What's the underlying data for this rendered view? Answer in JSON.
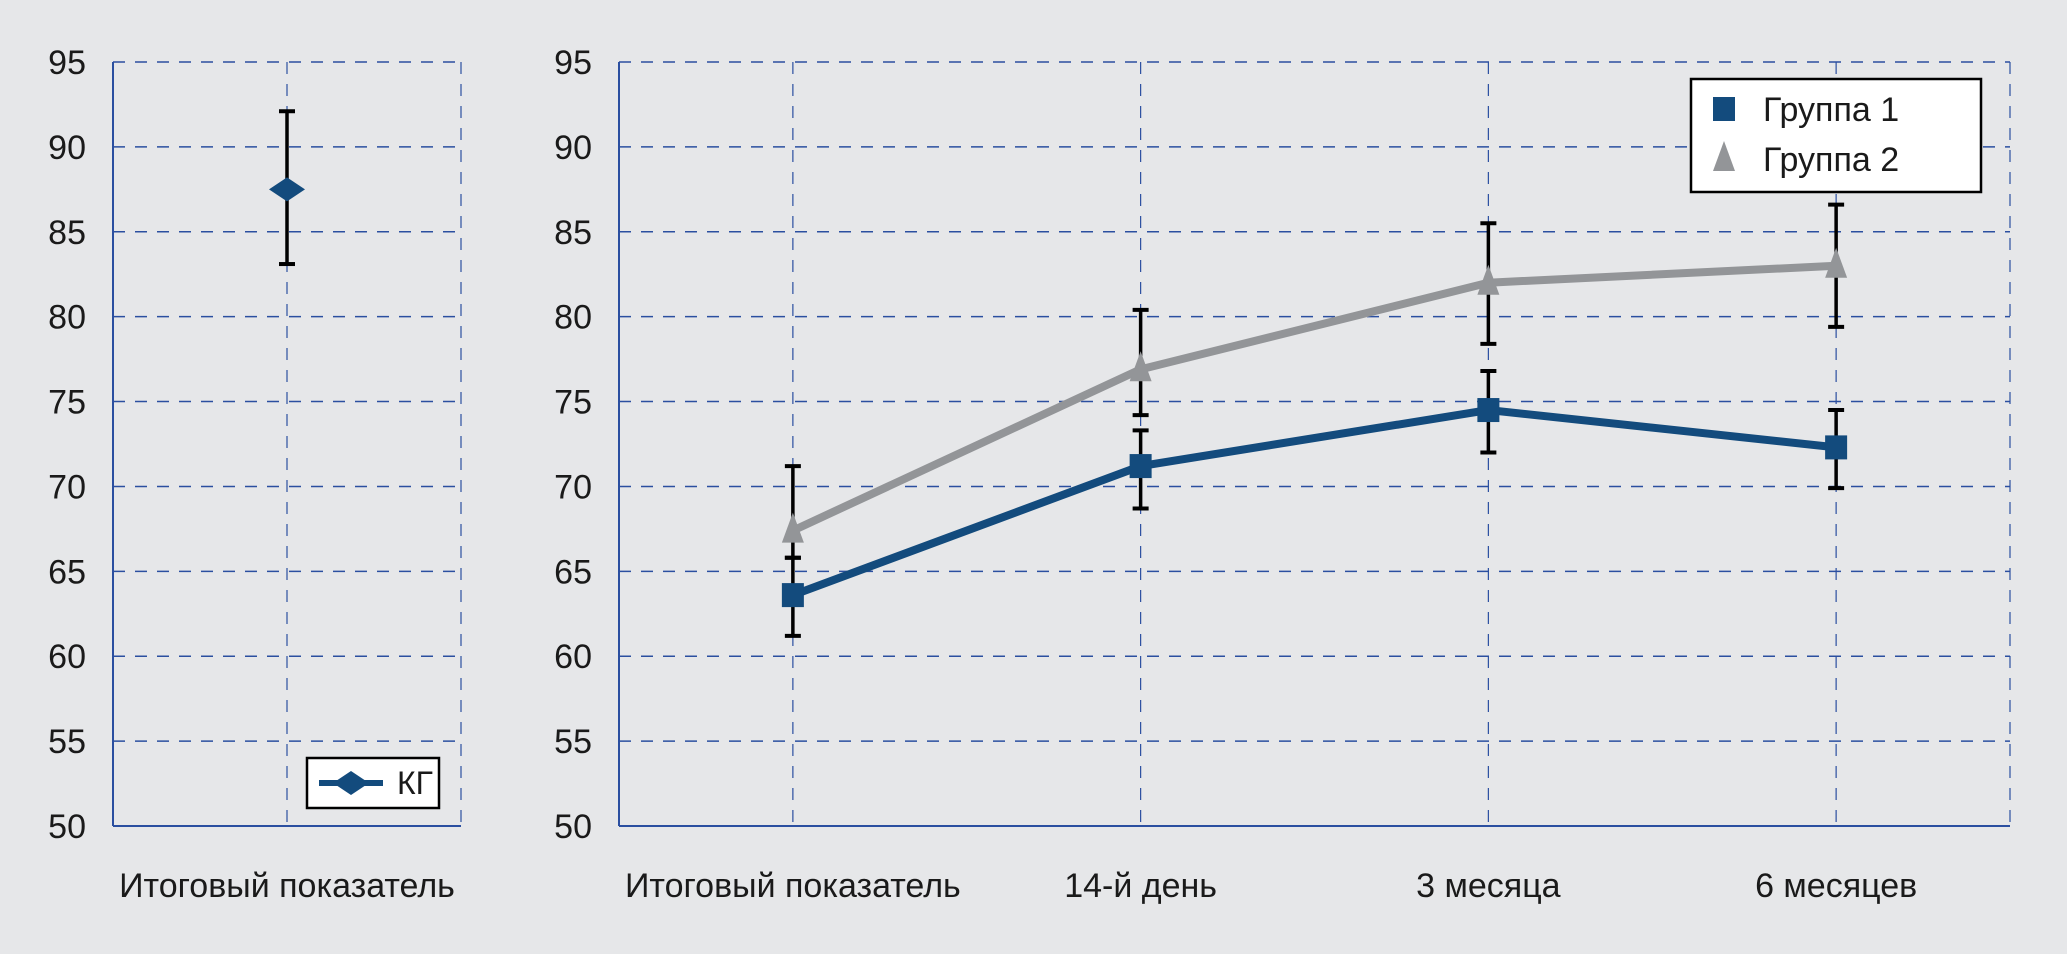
{
  "chart_data": [
    {
      "type": "line",
      "categories": [
        "Итоговый показатель"
      ],
      "ylim": [
        50,
        95
      ],
      "yticks": [
        50,
        55,
        60,
        65,
        70,
        75,
        80,
        85,
        90,
        95
      ],
      "grid": true,
      "legend_position": "bottom-right",
      "series": [
        {
          "name": "КГ",
          "color": "#134b7d",
          "marker": "diamond",
          "values": [
            87.5
          ],
          "err_low": [
            83.1
          ],
          "err_high": [
            92.1
          ]
        }
      ]
    },
    {
      "type": "line",
      "categories": [
        "Итоговый показатель",
        "14-й день",
        "3 месяца",
        "6 месяцев"
      ],
      "ylim": [
        50,
        95
      ],
      "yticks": [
        50,
        55,
        60,
        65,
        70,
        75,
        80,
        85,
        90,
        95
      ],
      "grid": true,
      "legend_position": "top-right",
      "series": [
        {
          "name": "Группа 1",
          "color": "#134b7d",
          "marker": "square",
          "values": [
            63.6,
            71.2,
            74.5,
            72.3
          ],
          "err_low": [
            61.2,
            68.7,
            72.0,
            69.9
          ],
          "err_high": [
            65.8,
            73.3,
            76.8,
            74.5
          ]
        },
        {
          "name": "Группа 2",
          "color": "#939598",
          "marker": "triangle",
          "values": [
            67.4,
            76.9,
            82.0,
            83.0
          ],
          "err_low": [
            65.8,
            74.2,
            78.4,
            79.4
          ],
          "err_high": [
            71.2,
            80.4,
            85.5,
            86.6
          ]
        }
      ]
    }
  ]
}
